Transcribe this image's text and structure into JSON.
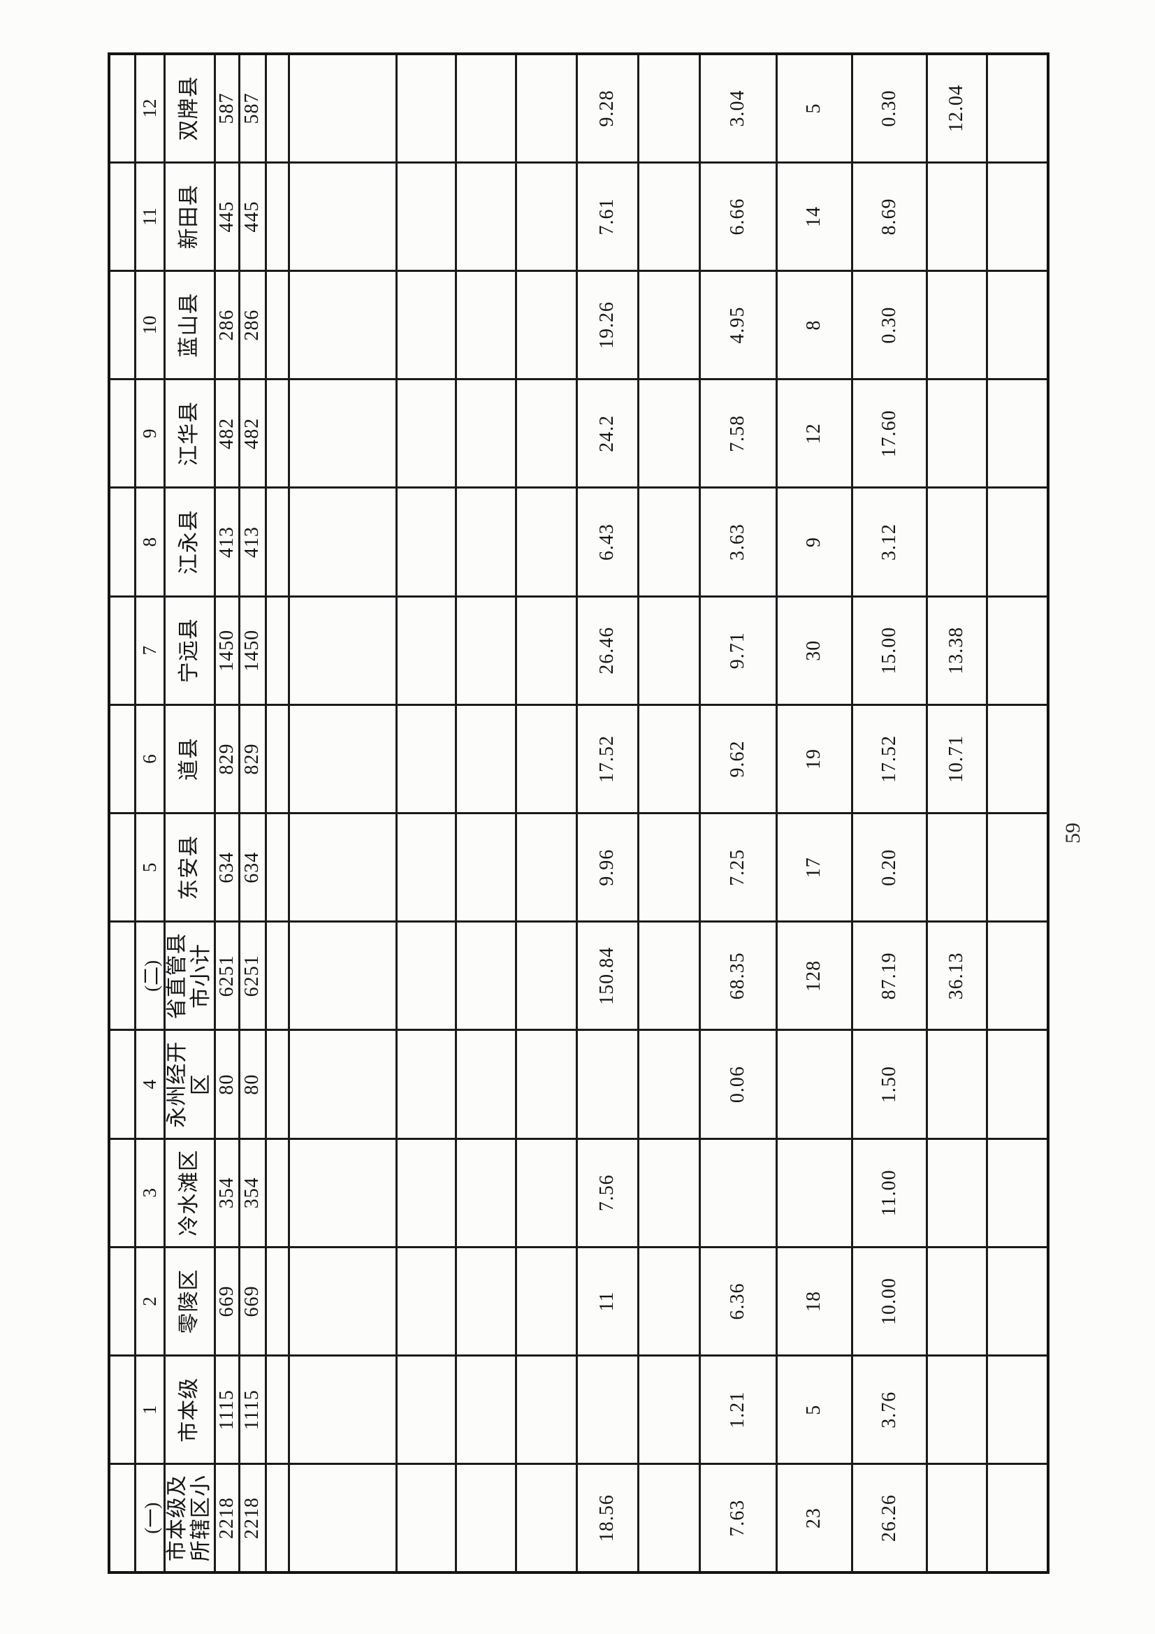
{
  "page": {
    "number": "59"
  },
  "table": {
    "orientation": "rotated-90-ccw",
    "grid_color": "#1b1b1b",
    "row_template": [
      {
        "key": null,
        "h": 37
      },
      {
        "key": "seq",
        "h": 35
      },
      {
        "key": "name",
        "h": 72
      },
      {
        "key": "v1",
        "h": 35
      },
      {
        "key": "v2",
        "h": 38
      },
      {
        "key": null,
        "h": 33
      },
      {
        "key": null,
        "h": 154
      },
      {
        "key": null,
        "h": 85
      },
      {
        "key": null,
        "h": 86
      },
      {
        "key": null,
        "h": 87
      },
      {
        "key": "r11",
        "h": 88
      },
      {
        "key": null,
        "h": 88
      },
      {
        "key": "r13",
        "h": 110
      },
      {
        "key": "r14",
        "h": 108
      },
      {
        "key": "r15",
        "h": 107
      },
      {
        "key": "r16",
        "h": 86
      },
      {
        "key": null,
        "h": 88
      }
    ],
    "columns": [
      {
        "seq": "(一)",
        "name": "市本级及\n所辖区小",
        "v1": "2218",
        "v2": "2218",
        "r11": "18.56",
        "r13": "7.63",
        "r14": "23",
        "r15": "26.26",
        "r16": ""
      },
      {
        "seq": "1",
        "name": "市本级",
        "v1": "1115",
        "v2": "1115",
        "r11": "",
        "r13": "1.21",
        "r14": "5",
        "r15": "3.76",
        "r16": ""
      },
      {
        "seq": "2",
        "name": "零陵区",
        "v1": "669",
        "v2": "669",
        "r11": "11",
        "r13": "6.36",
        "r14": "18",
        "r15": "10.00",
        "r16": ""
      },
      {
        "seq": "3",
        "name": "冷水滩区",
        "v1": "354",
        "v2": "354",
        "r11": "7.56",
        "r13": "",
        "r14": "",
        "r15": "11.00",
        "r16": ""
      },
      {
        "seq": "4",
        "name": "永州经开\n区",
        "v1": "80",
        "v2": "80",
        "r11": "",
        "r13": "0.06",
        "r14": "",
        "r15": "1.50",
        "r16": ""
      },
      {
        "seq": "(二)",
        "name": "省直管县\n市小计",
        "v1": "6251",
        "v2": "6251",
        "r11": "150.84",
        "r13": "68.35",
        "r14": "128",
        "r15": "87.19",
        "r16": "36.13"
      },
      {
        "seq": "5",
        "name": "东安县",
        "v1": "634",
        "v2": "634",
        "r11": "9.96",
        "r13": "7.25",
        "r14": "17",
        "r15": "0.20",
        "r16": ""
      },
      {
        "seq": "6",
        "name": "道县",
        "v1": "829",
        "v2": "829",
        "r11": "17.52",
        "r13": "9.62",
        "r14": "19",
        "r15": "17.52",
        "r16": "10.71"
      },
      {
        "seq": "7",
        "name": "宁远县",
        "v1": "1450",
        "v2": "1450",
        "r11": "26.46",
        "r13": "9.71",
        "r14": "30",
        "r15": "15.00",
        "r16": "13.38"
      },
      {
        "seq": "8",
        "name": "江永县",
        "v1": "413",
        "v2": "413",
        "r11": "6.43",
        "r13": "3.63",
        "r14": "9",
        "r15": "3.12",
        "r16": ""
      },
      {
        "seq": "9",
        "name": "江华县",
        "v1": "482",
        "v2": "482",
        "r11": "24.2",
        "r13": "7.58",
        "r14": "12",
        "r15": "17.60",
        "r16": ""
      },
      {
        "seq": "10",
        "name": "蓝山县",
        "v1": "286",
        "v2": "286",
        "r11": "19.26",
        "r13": "4.95",
        "r14": "8",
        "r15": "0.30",
        "r16": ""
      },
      {
        "seq": "11",
        "name": "新田县",
        "v1": "445",
        "v2": "445",
        "r11": "7.61",
        "r13": "6.66",
        "r14": "14",
        "r15": "8.69",
        "r16": ""
      },
      {
        "seq": "12",
        "name": "双牌县",
        "v1": "587",
        "v2": "587",
        "r11": "9.28",
        "r13": "3.04",
        "r14": "5",
        "r15": "0.30",
        "r16": "12.04"
      }
    ]
  }
}
